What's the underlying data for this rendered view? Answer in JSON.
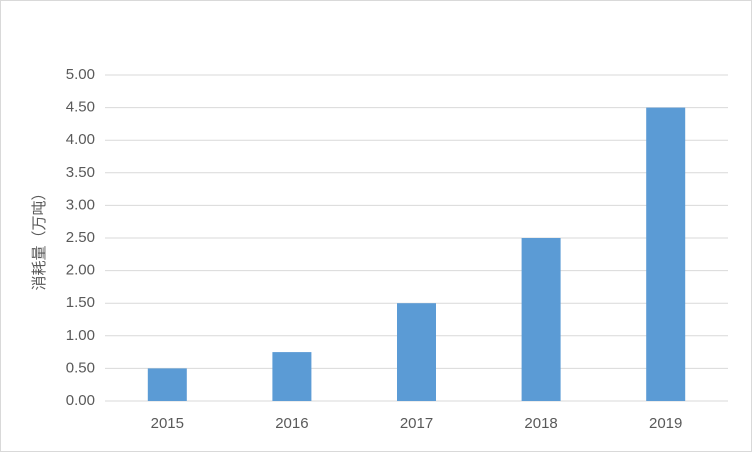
{
  "chart_data": {
    "type": "bar",
    "y_label": "消耗量（万吨）",
    "categories": [
      "2015",
      "2016",
      "2017",
      "2018",
      "2019"
    ],
    "values": [
      0.5,
      0.75,
      1.5,
      2.5,
      4.5
    ],
    "color": "#5b9bd5",
    "ylim": [
      0,
      5
    ],
    "yticks": [
      {
        "value": 0,
        "label": "0.00"
      },
      {
        "value": 0.5,
        "label": "0.50"
      },
      {
        "value": 1,
        "label": "1.00"
      },
      {
        "value": 1.5,
        "label": "1.50"
      },
      {
        "value": 2,
        "label": "2.00"
      },
      {
        "value": 2.5,
        "label": "2.50"
      },
      {
        "value": 3,
        "label": "3.00"
      },
      {
        "value": 3.5,
        "label": "3.50"
      },
      {
        "value": 4,
        "label": "4.00"
      },
      {
        "value": 4.5,
        "label": "4.50"
      },
      {
        "value": 5,
        "label": "5.00"
      }
    ],
    "grid": true
  }
}
